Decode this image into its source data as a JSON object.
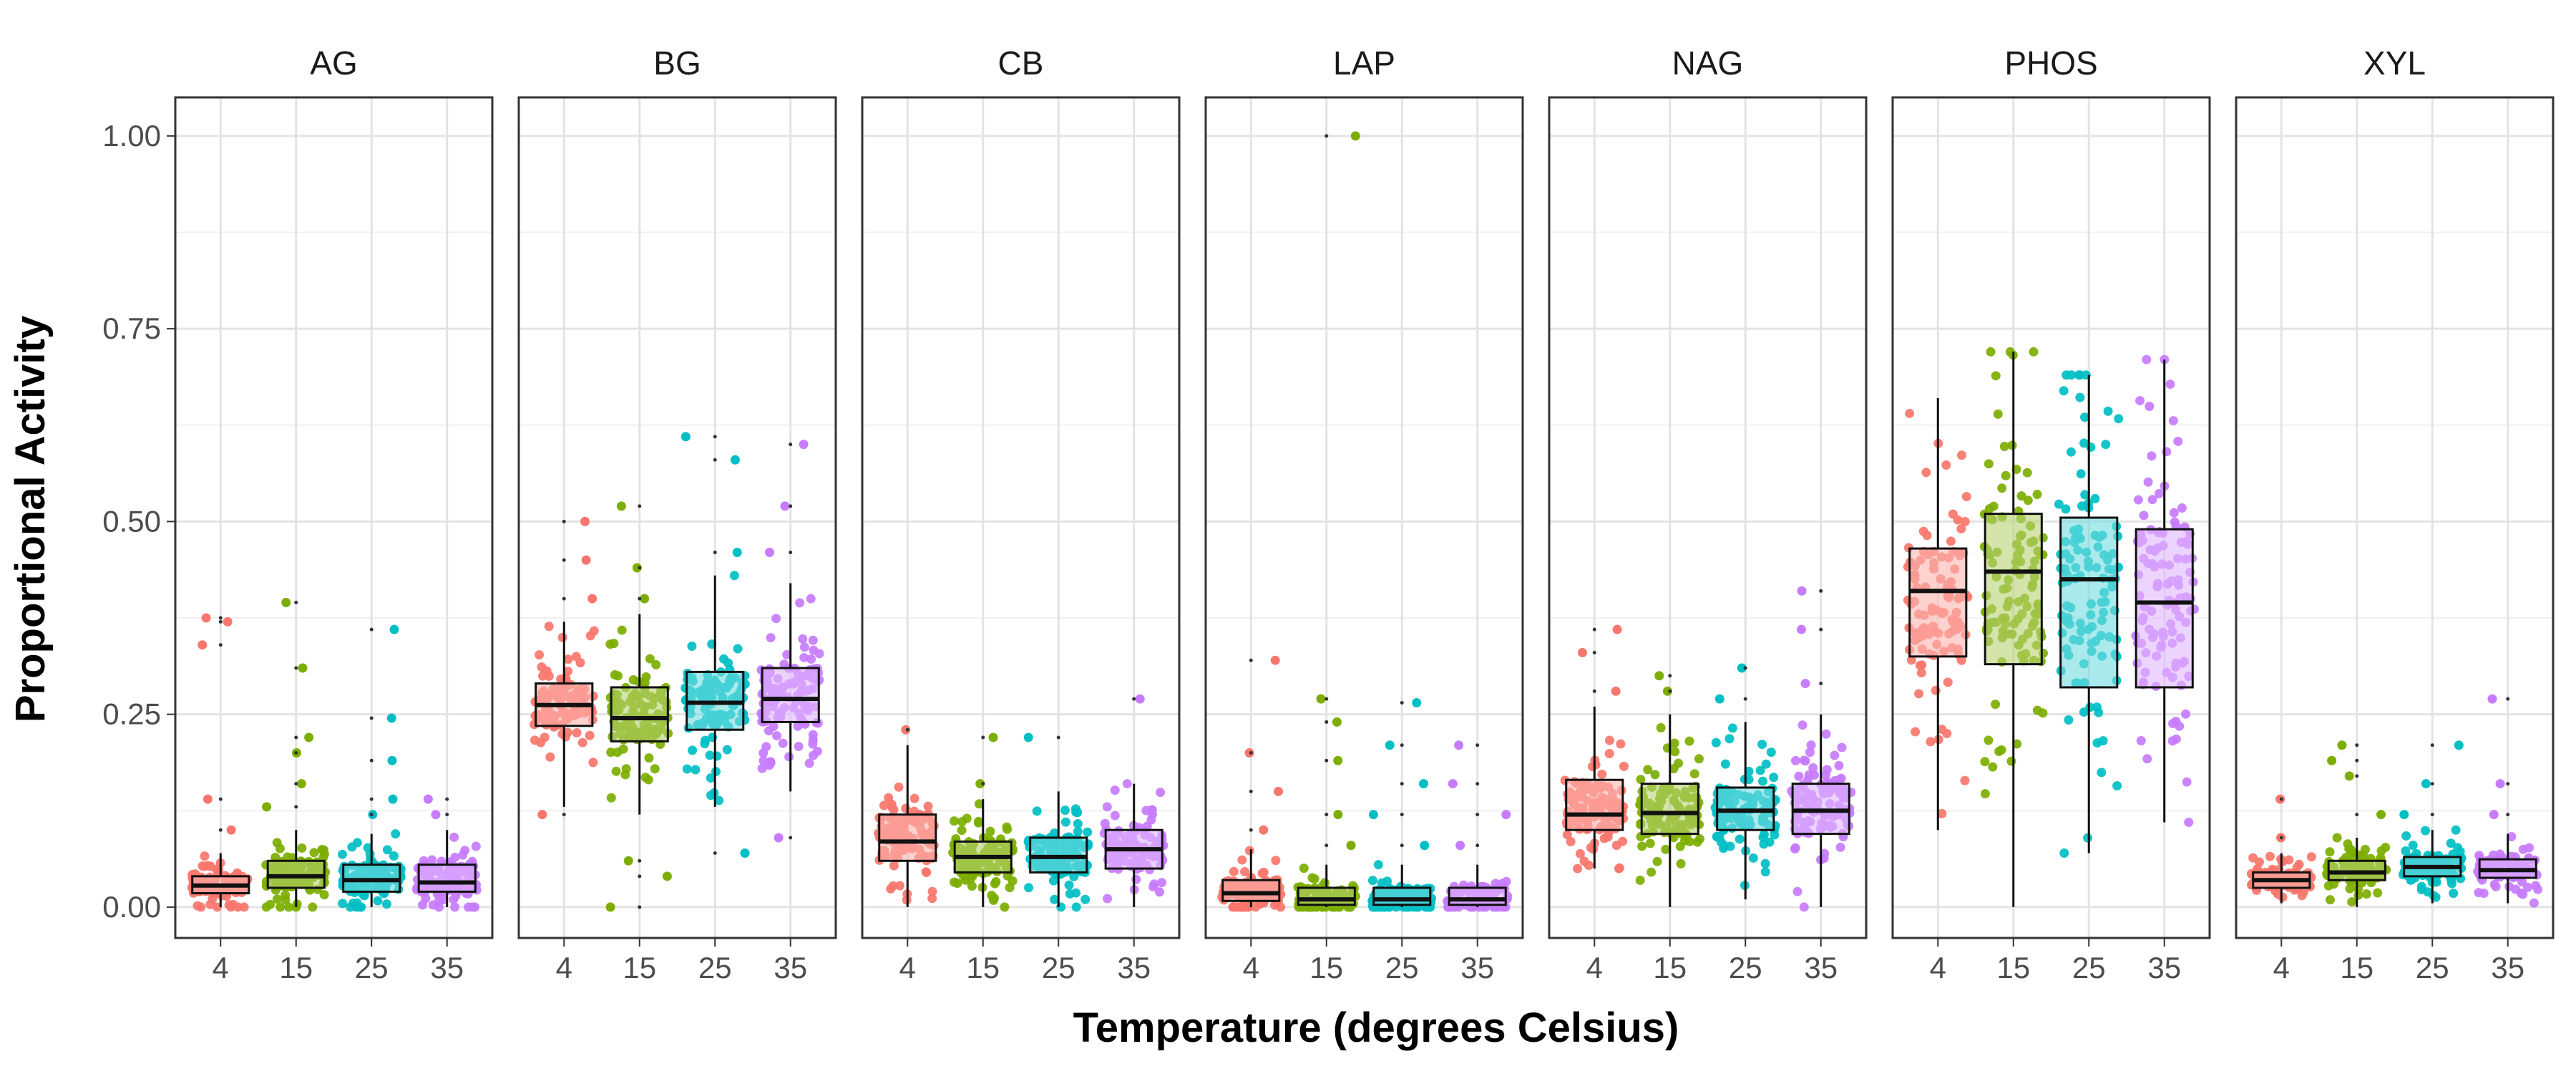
{
  "chart_data": {
    "type": "boxplot",
    "xlabel": "Temperature (degrees Celsius)",
    "ylabel": "Proportional Activity",
    "ylim": [
      -0.04,
      1.05
    ],
    "yticks": [
      "0.00",
      "0.25",
      "0.50",
      "0.75",
      "1.00"
    ],
    "ytick_values": [
      0,
      0.25,
      0.5,
      0.75,
      1.0
    ],
    "categories": [
      "4",
      "15",
      "25",
      "35"
    ],
    "grid": true,
    "series_colors": {
      "4": "#f8766d",
      "15": "#7cae00",
      "25": "#00bfc4",
      "35": "#c77cff"
    },
    "panels": [
      {
        "name": "AG",
        "boxes": [
          {
            "x": "4",
            "q1": 0.018,
            "median": 0.028,
            "q3": 0.04,
            "whisker_low": 0.0,
            "whisker_high": 0.07,
            "outliers": [
              0.1,
              0.14,
              0.34,
              0.37,
              0.375
            ]
          },
          {
            "x": "15",
            "q1": 0.025,
            "median": 0.04,
            "q3": 0.06,
            "whisker_low": 0.0,
            "whisker_high": 0.1,
            "outliers": [
              0.13,
              0.16,
              0.2,
              0.22,
              0.31,
              0.395
            ]
          },
          {
            "x": "25",
            "q1": 0.02,
            "median": 0.035,
            "q3": 0.055,
            "whisker_low": 0.0,
            "whisker_high": 0.095,
            "outliers": [
              0.12,
              0.14,
              0.19,
              0.245,
              0.36
            ]
          },
          {
            "x": "35",
            "q1": 0.02,
            "median": 0.032,
            "q3": 0.055,
            "whisker_low": 0.0,
            "whisker_high": 0.1,
            "outliers": [
              0.12,
              0.14
            ]
          }
        ]
      },
      {
        "name": "BG",
        "boxes": [
          {
            "x": "4",
            "q1": 0.235,
            "median": 0.262,
            "q3": 0.29,
            "whisker_low": 0.13,
            "whisker_high": 0.37,
            "outliers": [
              0.12,
              0.4,
              0.45,
              0.5
            ]
          },
          {
            "x": "15",
            "q1": 0.215,
            "median": 0.245,
            "q3": 0.285,
            "whisker_low": 0.12,
            "whisker_high": 0.38,
            "outliers": [
              0.0,
              0.04,
              0.06,
              0.4,
              0.44,
              0.52
            ]
          },
          {
            "x": "25",
            "q1": 0.23,
            "median": 0.265,
            "q3": 0.305,
            "whisker_low": 0.13,
            "whisker_high": 0.43,
            "outliers": [
              0.07,
              0.46,
              0.58,
              0.61
            ]
          },
          {
            "x": "35",
            "q1": 0.24,
            "median": 0.27,
            "q3": 0.31,
            "whisker_low": 0.15,
            "whisker_high": 0.42,
            "outliers": [
              0.09,
              0.46,
              0.52,
              0.6
            ]
          }
        ]
      },
      {
        "name": "CB",
        "boxes": [
          {
            "x": "4",
            "q1": 0.06,
            "median": 0.085,
            "q3": 0.12,
            "whisker_low": 0.0,
            "whisker_high": 0.21,
            "outliers": [
              0.23
            ]
          },
          {
            "x": "15",
            "q1": 0.045,
            "median": 0.065,
            "q3": 0.085,
            "whisker_low": 0.0,
            "whisker_high": 0.14,
            "outliers": [
              0.16,
              0.22
            ]
          },
          {
            "x": "25",
            "q1": 0.045,
            "median": 0.065,
            "q3": 0.09,
            "whisker_low": 0.0,
            "whisker_high": 0.15,
            "outliers": [
              0.22
            ]
          },
          {
            "x": "35",
            "q1": 0.05,
            "median": 0.075,
            "q3": 0.1,
            "whisker_low": 0.0,
            "whisker_high": 0.16,
            "outliers": [
              0.27
            ]
          }
        ]
      },
      {
        "name": "LAP",
        "boxes": [
          {
            "x": "4",
            "q1": 0.008,
            "median": 0.018,
            "q3": 0.035,
            "whisker_low": 0.0,
            "whisker_high": 0.075,
            "outliers": [
              0.1,
              0.15,
              0.2,
              0.32
            ]
          },
          {
            "x": "15",
            "q1": 0.003,
            "median": 0.01,
            "q3": 0.025,
            "whisker_low": 0.0,
            "whisker_high": 0.055,
            "outliers": [
              0.08,
              0.12,
              0.19,
              0.24,
              0.27,
              1.0
            ]
          },
          {
            "x": "25",
            "q1": 0.003,
            "median": 0.01,
            "q3": 0.025,
            "whisker_low": 0.0,
            "whisker_high": 0.055,
            "outliers": [
              0.08,
              0.12,
              0.16,
              0.21,
              0.265
            ]
          },
          {
            "x": "35",
            "q1": 0.003,
            "median": 0.01,
            "q3": 0.025,
            "whisker_low": 0.0,
            "whisker_high": 0.055,
            "outliers": [
              0.08,
              0.12,
              0.16,
              0.21
            ]
          }
        ]
      },
      {
        "name": "NAG",
        "boxes": [
          {
            "x": "4",
            "q1": 0.1,
            "median": 0.12,
            "q3": 0.165,
            "whisker_low": 0.05,
            "whisker_high": 0.26,
            "outliers": [
              0.28,
              0.33,
              0.36
            ]
          },
          {
            "x": "15",
            "q1": 0.095,
            "median": 0.122,
            "q3": 0.16,
            "whisker_low": 0.0,
            "whisker_high": 0.25,
            "outliers": [
              0.28,
              0.3
            ]
          },
          {
            "x": "25",
            "q1": 0.1,
            "median": 0.125,
            "q3": 0.155,
            "whisker_low": 0.01,
            "whisker_high": 0.24,
            "outliers": [
              0.27,
              0.31
            ]
          },
          {
            "x": "35",
            "q1": 0.095,
            "median": 0.125,
            "q3": 0.16,
            "whisker_low": 0.0,
            "whisker_high": 0.25,
            "outliers": [
              0.29,
              0.36,
              0.41
            ]
          }
        ]
      },
      {
        "name": "PHOS",
        "boxes": [
          {
            "x": "4",
            "q1": 0.325,
            "median": 0.41,
            "q3": 0.465,
            "whisker_low": 0.1,
            "whisker_high": 0.66,
            "outliers": []
          },
          {
            "x": "15",
            "q1": 0.315,
            "median": 0.435,
            "q3": 0.51,
            "whisker_low": 0.0,
            "whisker_high": 0.72,
            "outliers": []
          },
          {
            "x": "25",
            "q1": 0.285,
            "median": 0.425,
            "q3": 0.505,
            "whisker_low": 0.07,
            "whisker_high": 0.69,
            "outliers": []
          },
          {
            "x": "35",
            "q1": 0.285,
            "median": 0.395,
            "q3": 0.49,
            "whisker_low": 0.11,
            "whisker_high": 0.71,
            "outliers": []
          }
        ]
      },
      {
        "name": "XYL",
        "boxes": [
          {
            "x": "4",
            "q1": 0.025,
            "median": 0.035,
            "q3": 0.045,
            "whisker_low": 0.005,
            "whisker_high": 0.07,
            "outliers": [
              0.09,
              0.14
            ]
          },
          {
            "x": "15",
            "q1": 0.035,
            "median": 0.045,
            "q3": 0.06,
            "whisker_low": 0.0,
            "whisker_high": 0.09,
            "outliers": [
              0.12,
              0.17,
              0.19,
              0.21
            ]
          },
          {
            "x": "25",
            "q1": 0.04,
            "median": 0.052,
            "q3": 0.065,
            "whisker_low": 0.005,
            "whisker_high": 0.1,
            "outliers": [
              0.12,
              0.16,
              0.21
            ]
          },
          {
            "x": "35",
            "q1": 0.038,
            "median": 0.048,
            "q3": 0.062,
            "whisker_low": 0.005,
            "whisker_high": 0.095,
            "outliers": [
              0.12,
              0.16,
              0.27
            ]
          }
        ]
      }
    ]
  }
}
